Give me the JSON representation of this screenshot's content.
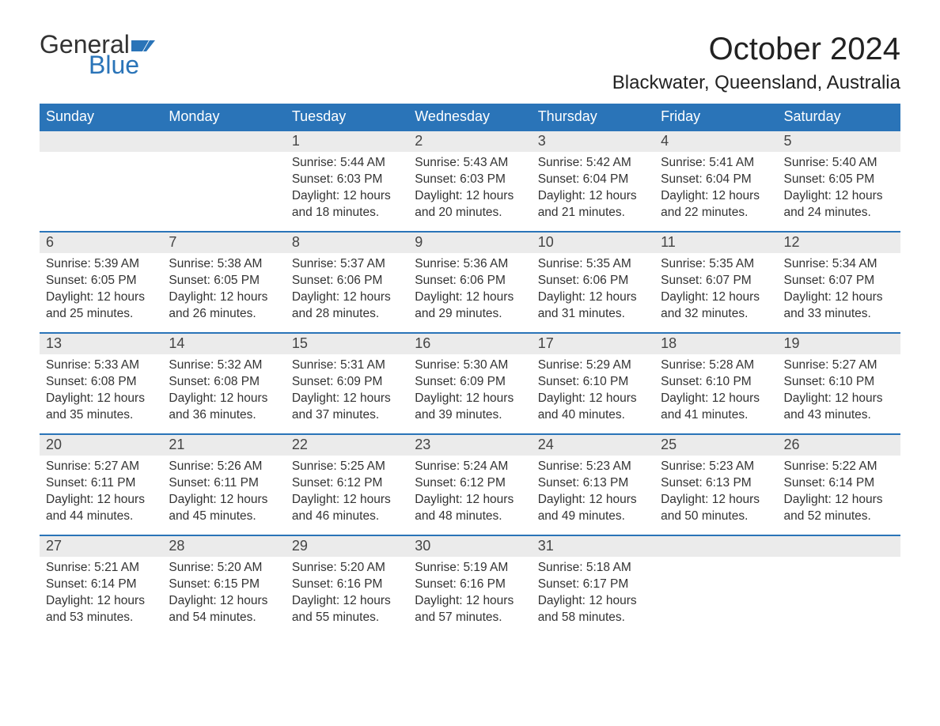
{
  "brand": {
    "part1": "General",
    "part2": "Blue",
    "icon_color": "#2a74b8",
    "text_color": "#333333"
  },
  "title": "October 2024",
  "location": "Blackwater, Queensland, Australia",
  "colors": {
    "header_bg": "#2a74b8",
    "header_fg": "#ffffff",
    "daynum_bg": "#ebebeb",
    "row_border": "#2a74b8",
    "body_text": "#333333",
    "background": "#ffffff"
  },
  "typography": {
    "title_fontsize": 40,
    "location_fontsize": 24,
    "header_fontsize": 18,
    "daynum_fontsize": 18,
    "cell_fontsize": 15.5
  },
  "layout": {
    "columns": 7,
    "rows": 5,
    "leading_blanks": 2,
    "trailing_blanks": 2
  },
  "weekdays": [
    "Sunday",
    "Monday",
    "Tuesday",
    "Wednesday",
    "Thursday",
    "Friday",
    "Saturday"
  ],
  "days": [
    {
      "n": 1,
      "sunrise": "5:44 AM",
      "sunset": "6:03 PM",
      "daylight": "12 hours and 18 minutes."
    },
    {
      "n": 2,
      "sunrise": "5:43 AM",
      "sunset": "6:03 PM",
      "daylight": "12 hours and 20 minutes."
    },
    {
      "n": 3,
      "sunrise": "5:42 AM",
      "sunset": "6:04 PM",
      "daylight": "12 hours and 21 minutes."
    },
    {
      "n": 4,
      "sunrise": "5:41 AM",
      "sunset": "6:04 PM",
      "daylight": "12 hours and 22 minutes."
    },
    {
      "n": 5,
      "sunrise": "5:40 AM",
      "sunset": "6:05 PM",
      "daylight": "12 hours and 24 minutes."
    },
    {
      "n": 6,
      "sunrise": "5:39 AM",
      "sunset": "6:05 PM",
      "daylight": "12 hours and 25 minutes."
    },
    {
      "n": 7,
      "sunrise": "5:38 AM",
      "sunset": "6:05 PM",
      "daylight": "12 hours and 26 minutes."
    },
    {
      "n": 8,
      "sunrise": "5:37 AM",
      "sunset": "6:06 PM",
      "daylight": "12 hours and 28 minutes."
    },
    {
      "n": 9,
      "sunrise": "5:36 AM",
      "sunset": "6:06 PM",
      "daylight": "12 hours and 29 minutes."
    },
    {
      "n": 10,
      "sunrise": "5:35 AM",
      "sunset": "6:06 PM",
      "daylight": "12 hours and 31 minutes."
    },
    {
      "n": 11,
      "sunrise": "5:35 AM",
      "sunset": "6:07 PM",
      "daylight": "12 hours and 32 minutes."
    },
    {
      "n": 12,
      "sunrise": "5:34 AM",
      "sunset": "6:07 PM",
      "daylight": "12 hours and 33 minutes."
    },
    {
      "n": 13,
      "sunrise": "5:33 AM",
      "sunset": "6:08 PM",
      "daylight": "12 hours and 35 minutes."
    },
    {
      "n": 14,
      "sunrise": "5:32 AM",
      "sunset": "6:08 PM",
      "daylight": "12 hours and 36 minutes."
    },
    {
      "n": 15,
      "sunrise": "5:31 AM",
      "sunset": "6:09 PM",
      "daylight": "12 hours and 37 minutes."
    },
    {
      "n": 16,
      "sunrise": "5:30 AM",
      "sunset": "6:09 PM",
      "daylight": "12 hours and 39 minutes."
    },
    {
      "n": 17,
      "sunrise": "5:29 AM",
      "sunset": "6:10 PM",
      "daylight": "12 hours and 40 minutes."
    },
    {
      "n": 18,
      "sunrise": "5:28 AM",
      "sunset": "6:10 PM",
      "daylight": "12 hours and 41 minutes."
    },
    {
      "n": 19,
      "sunrise": "5:27 AM",
      "sunset": "6:10 PM",
      "daylight": "12 hours and 43 minutes."
    },
    {
      "n": 20,
      "sunrise": "5:27 AM",
      "sunset": "6:11 PM",
      "daylight": "12 hours and 44 minutes."
    },
    {
      "n": 21,
      "sunrise": "5:26 AM",
      "sunset": "6:11 PM",
      "daylight": "12 hours and 45 minutes."
    },
    {
      "n": 22,
      "sunrise": "5:25 AM",
      "sunset": "6:12 PM",
      "daylight": "12 hours and 46 minutes."
    },
    {
      "n": 23,
      "sunrise": "5:24 AM",
      "sunset": "6:12 PM",
      "daylight": "12 hours and 48 minutes."
    },
    {
      "n": 24,
      "sunrise": "5:23 AM",
      "sunset": "6:13 PM",
      "daylight": "12 hours and 49 minutes."
    },
    {
      "n": 25,
      "sunrise": "5:23 AM",
      "sunset": "6:13 PM",
      "daylight": "12 hours and 50 minutes."
    },
    {
      "n": 26,
      "sunrise": "5:22 AM",
      "sunset": "6:14 PM",
      "daylight": "12 hours and 52 minutes."
    },
    {
      "n": 27,
      "sunrise": "5:21 AM",
      "sunset": "6:14 PM",
      "daylight": "12 hours and 53 minutes."
    },
    {
      "n": 28,
      "sunrise": "5:20 AM",
      "sunset": "6:15 PM",
      "daylight": "12 hours and 54 minutes."
    },
    {
      "n": 29,
      "sunrise": "5:20 AM",
      "sunset": "6:16 PM",
      "daylight": "12 hours and 55 minutes."
    },
    {
      "n": 30,
      "sunrise": "5:19 AM",
      "sunset": "6:16 PM",
      "daylight": "12 hours and 57 minutes."
    },
    {
      "n": 31,
      "sunrise": "5:18 AM",
      "sunset": "6:17 PM",
      "daylight": "12 hours and 58 minutes."
    }
  ],
  "labels": {
    "sunrise_prefix": "Sunrise: ",
    "sunset_prefix": "Sunset: ",
    "daylight_prefix": "Daylight: "
  }
}
